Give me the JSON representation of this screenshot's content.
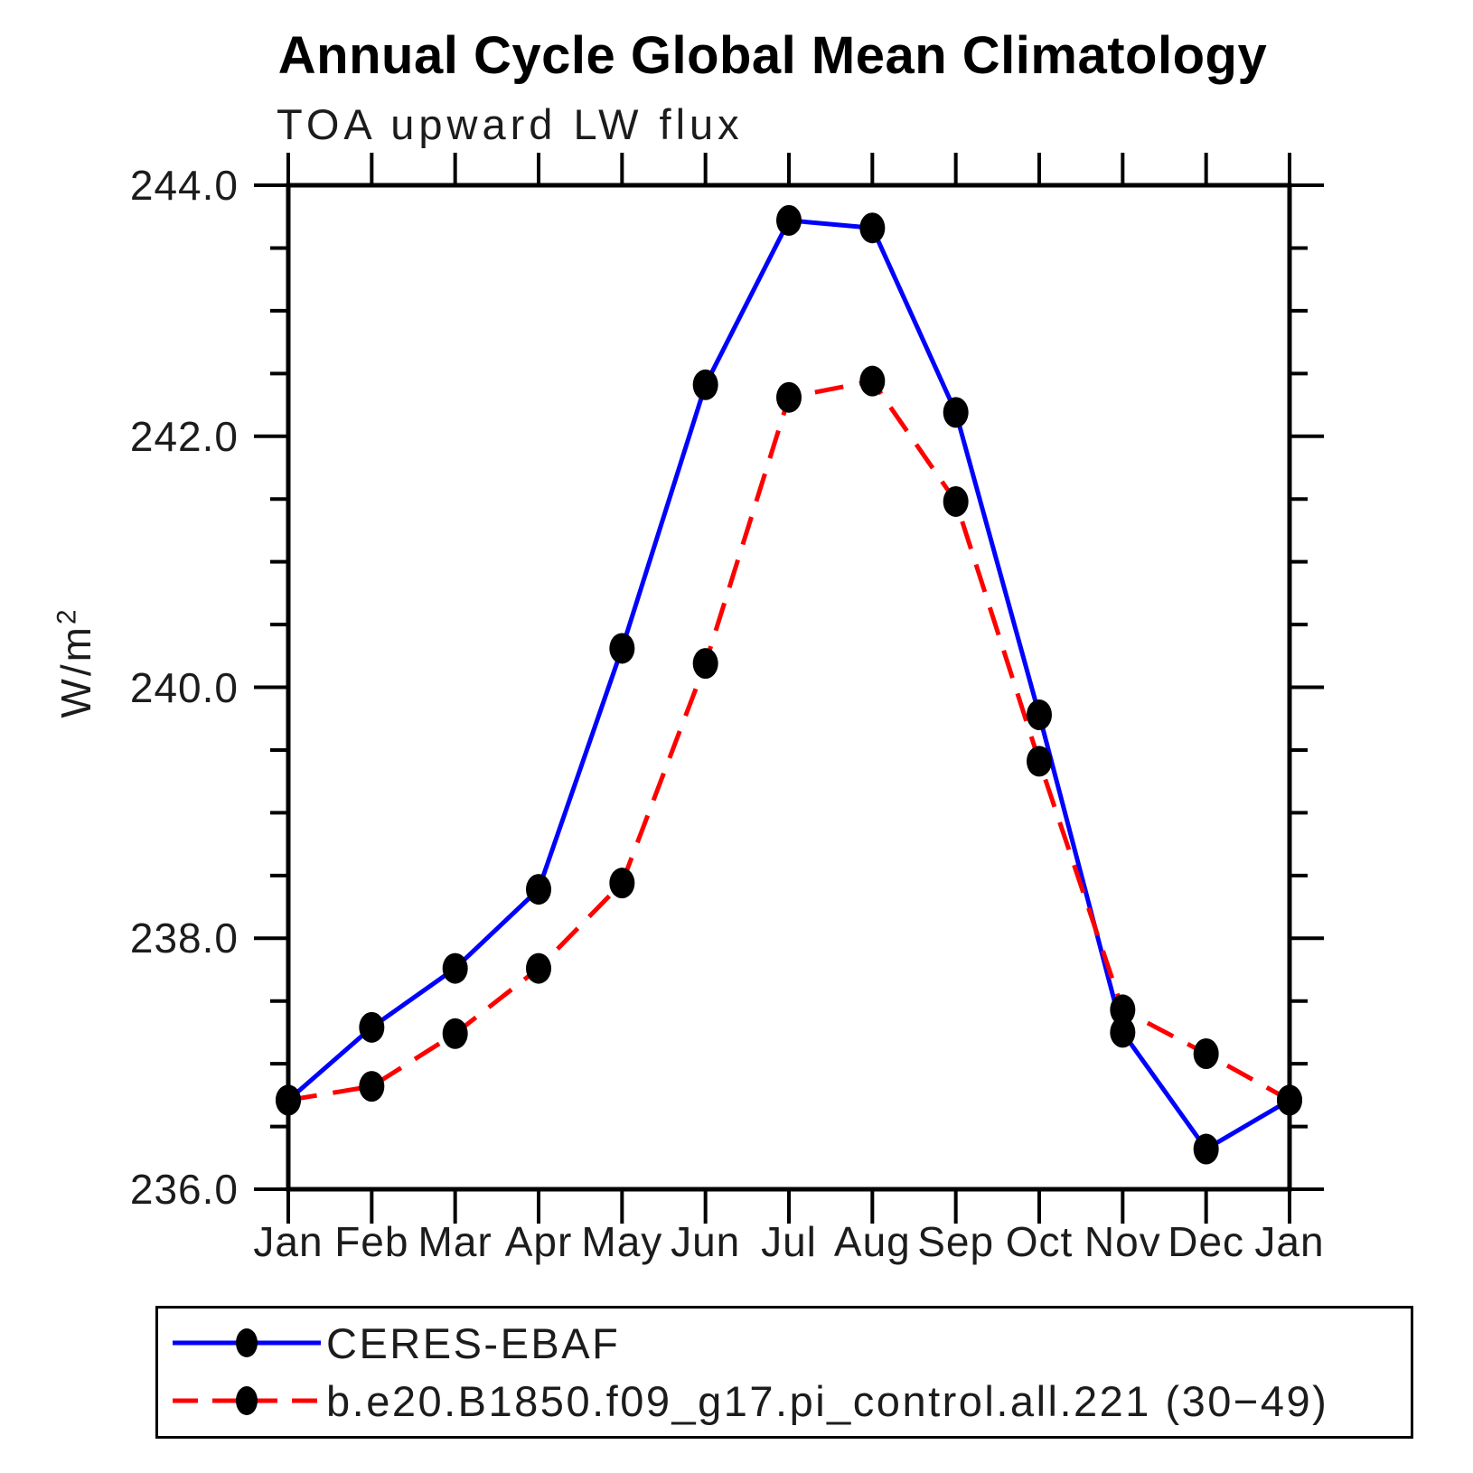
{
  "chart_data": {
    "type": "line",
    "title": "Annual Cycle Global Mean Climatology",
    "subtitle": "TOA upward LW flux",
    "ylabel": "W/m²",
    "ylabel_base": "W/m",
    "ylabel_sup": "2",
    "ylim": [
      236.0,
      244.0
    ],
    "ytick_labels": [
      "236.0",
      "238.0",
      "240.0",
      "242.0",
      "244.0"
    ],
    "ytick_major_step": 2.0,
    "ytick_minor_step": 0.5,
    "grid": false,
    "legend_position": "bottom",
    "categories": [
      "Jan",
      "Feb",
      "Mar",
      "Apr",
      "May",
      "Jun",
      "Jul",
      "Aug",
      "Sep",
      "Oct",
      "Nov",
      "Dec",
      "Jan"
    ],
    "series": [
      {
        "name": "CERES-EBAF",
        "color": "#0000ff",
        "line_style": "solid",
        "marker": "black-dot",
        "values": [
          236.71,
          237.29,
          237.76,
          238.39,
          240.31,
          242.41,
          243.72,
          243.66,
          242.19,
          239.78,
          237.25,
          236.32,
          236.71
        ]
      },
      {
        "name": "b.e20.B1850.f09_g17.pi_control.all.221 (30−49)",
        "color": "#ff0000",
        "line_style": "dashed",
        "marker": "black-dot",
        "values": [
          236.71,
          236.82,
          237.24,
          237.76,
          238.44,
          240.19,
          242.31,
          242.44,
          241.48,
          239.41,
          237.43,
          237.08,
          236.71
        ]
      }
    ]
  }
}
